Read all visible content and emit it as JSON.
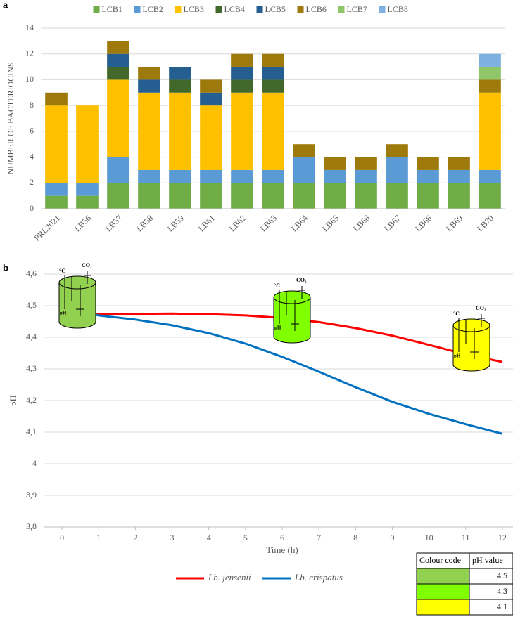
{
  "chart_data": [
    {
      "type": "bar",
      "panel_label": "a",
      "ylabel": "NUMBER OF BACTERIOCINS",
      "categories": [
        "PRL2021",
        "LB56",
        "LB57",
        "LB58",
        "LB59",
        "LB61",
        "LB62",
        "LB63",
        "LB64",
        "LB65",
        "LB66",
        "LB67",
        "LB68",
        "LB69",
        "LB70"
      ],
      "series": [
        {
          "name": "LCB1",
          "color": "#70ad47",
          "values": [
            1,
            1,
            2,
            2,
            2,
            2,
            2,
            2,
            2,
            2,
            2,
            2,
            2,
            2,
            2
          ]
        },
        {
          "name": "LCB2",
          "color": "#5b9bd5",
          "values": [
            1,
            1,
            2,
            1,
            1,
            1,
            1,
            1,
            2,
            1,
            1,
            2,
            1,
            1,
            1
          ]
        },
        {
          "name": "LCB3",
          "color": "#ffc000",
          "values": [
            6,
            6,
            6,
            6,
            6,
            5,
            6,
            6,
            0,
            0,
            0,
            0,
            0,
            0,
            6
          ]
        },
        {
          "name": "LCB4",
          "color": "#43682b",
          "values": [
            0,
            0,
            1,
            0,
            1,
            0,
            1,
            1,
            0,
            0,
            0,
            0,
            0,
            0,
            0
          ]
        },
        {
          "name": "LCB5",
          "color": "#255e91",
          "values": [
            0,
            0,
            1,
            1,
            1,
            1,
            1,
            1,
            0,
            0,
            0,
            0,
            0,
            0,
            0
          ]
        },
        {
          "name": "LCB6",
          "color": "#9e7a0c",
          "values": [
            1,
            0,
            1,
            1,
            0,
            1,
            1,
            1,
            1,
            1,
            1,
            1,
            1,
            1,
            1
          ]
        },
        {
          "name": "LCB7",
          "color": "#8fc66a",
          "values": [
            0,
            0,
            0,
            0,
            0,
            0,
            0,
            0,
            0,
            0,
            0,
            0,
            0,
            0,
            1
          ]
        },
        {
          "name": "LCB8",
          "color": "#7fb1e0",
          "values": [
            0,
            0,
            0,
            0,
            0,
            0,
            0,
            0,
            0,
            0,
            0,
            0,
            0,
            0,
            1
          ]
        }
      ],
      "ylim": [
        0,
        14
      ],
      "yticks": [
        0,
        2,
        4,
        6,
        8,
        10,
        12,
        14
      ],
      "grid": true,
      "legend": "top"
    },
    {
      "type": "line",
      "panel_label": "b",
      "xlabel": "Time (h)",
      "ylabel": "pH",
      "x": [
        0,
        1,
        2,
        3,
        4,
        5,
        6,
        7,
        8,
        9,
        10,
        11,
        12
      ],
      "series": [
        {
          "name": "Lb. jensenii",
          "color": "#ff0000",
          "values": [
            4.498,
            4.473,
            4.474,
            4.475,
            4.473,
            4.469,
            4.461,
            4.448,
            4.429,
            4.405,
            4.376,
            4.346,
            4.322
          ]
        },
        {
          "name": "Lb. crispatus",
          "color": "#0070c0",
          "values": [
            4.495,
            4.469,
            4.456,
            4.438,
            4.413,
            4.38,
            4.338,
            4.291,
            4.242,
            4.196,
            4.158,
            4.125,
            4.095
          ]
        }
      ],
      "xlim": [
        -0.5,
        12.5
      ],
      "xticks": [
        0,
        1,
        2,
        3,
        4,
        5,
        6,
        7,
        8,
        9,
        10,
        11,
        12
      ],
      "ylim": [
        3.8,
        4.6
      ],
      "yticks": [
        {
          "value": 3.8,
          "label": "3,8"
        },
        {
          "value": 3.9,
          "label": "3,9"
        },
        4,
        {
          "value": 4.1,
          "label": "4,1"
        },
        {
          "value": 4.2,
          "label": "4,2"
        },
        {
          "value": 4.3,
          "label": "4,3"
        },
        {
          "value": 4.4,
          "label": "4,4"
        },
        {
          "value": 4.5,
          "label": "4,5"
        },
        {
          "value": 4.6,
          "label": "4,6"
        }
      ],
      "grid": true,
      "legend": "bottom",
      "vessel_labels": [
        "°C",
        "CO₂",
        "pH"
      ]
    }
  ],
  "colour_table": {
    "header": [
      "Colour code",
      "pH value"
    ],
    "rows": [
      {
        "color": "#92d050",
        "value": 4.5
      },
      {
        "color": "#80ff00",
        "value": 4.3
      },
      {
        "color": "#ffff00",
        "value": 4.1
      }
    ]
  }
}
